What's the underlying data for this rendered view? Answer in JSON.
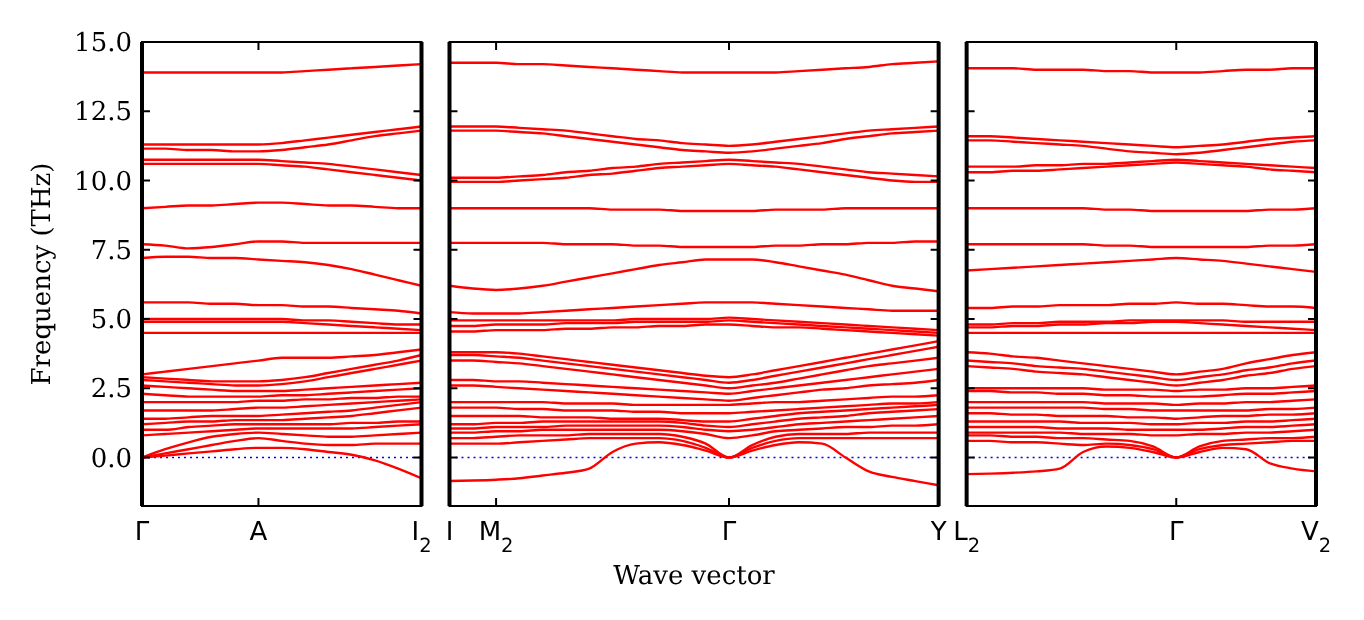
{
  "chart_data": [
    {
      "type": "line",
      "ylabel": "Frequency (THz)",
      "ylim": [
        -1.75,
        15
      ],
      "yticks": [
        {
          "value": 0,
          "label": "0.0"
        },
        {
          "value": 2.5,
          "label": "2.5"
        },
        {
          "value": 5,
          "label": "5.0"
        },
        {
          "value": 7.5,
          "label": "7.5"
        },
        {
          "value": 10,
          "label": "10.0"
        },
        {
          "value": 12.5,
          "label": "12.5"
        },
        {
          "value": 15,
          "label": "15.0"
        }
      ],
      "grid": false,
      "marker": "none",
      "line_style": "solid",
      "ref_lines": [
        {
          "axis": "y",
          "value": 0,
          "color": "#0000ff",
          "line_style": "dotted"
        }
      ],
      "categories": [
        "Γ",
        null,
        null,
        null,
        null,
        "A",
        null,
        null,
        null,
        null,
        null,
        null,
        "I$_{2}$"
      ],
      "series": [
        {
          "color": "#ff0000",
          "values": [
            0,
            0.07,
            0.15,
            0.22,
            0.3,
            0.35,
            0.35,
            0.3,
            0.2,
            0.1,
            -0.1,
            -0.4,
            -0.75
          ]
        },
        {
          "color": "#ff0000",
          "values": [
            0,
            0.15,
            0.3,
            0.45,
            0.6,
            0.7,
            0.6,
            0.5,
            0.45,
            0.45,
            0.5,
            0.5,
            0.5
          ]
        },
        {
          "color": "#ff0000",
          "values": [
            0,
            0.3,
            0.55,
            0.75,
            0.85,
            0.9,
            0.85,
            0.8,
            0.75,
            0.75,
            0.8,
            0.85,
            0.9
          ]
        },
        {
          "color": "#ff0000",
          "values": [
            0.8,
            0.85,
            0.9,
            0.95,
            1.0,
            1.05,
            1.05,
            1.05,
            1.05,
            1.05,
            1.1,
            1.15,
            1.2
          ]
        },
        {
          "color": "#ff0000",
          "values": [
            1.0,
            1.0,
            1.1,
            1.15,
            1.2,
            1.2,
            1.2,
            1.2,
            1.2,
            1.25,
            1.25,
            1.3,
            1.3
          ]
        },
        {
          "color": "#ff0000",
          "values": [
            1.2,
            1.25,
            1.3,
            1.3,
            1.35,
            1.35,
            1.35,
            1.4,
            1.45,
            1.5,
            1.6,
            1.7,
            1.8
          ]
        },
        {
          "color": "#ff0000",
          "values": [
            1.4,
            1.4,
            1.45,
            1.5,
            1.5,
            1.5,
            1.55,
            1.6,
            1.65,
            1.7,
            1.8,
            1.9,
            2.0
          ]
        },
        {
          "color": "#ff0000",
          "values": [
            1.7,
            1.7,
            1.7,
            1.7,
            1.75,
            1.8,
            1.8,
            1.85,
            1.9,
            1.95,
            2.0,
            2.05,
            2.1
          ]
        },
        {
          "color": "#ff0000",
          "values": [
            2.0,
            2.0,
            2.0,
            2.0,
            2.0,
            2.05,
            2.05,
            2.1,
            2.1,
            2.15,
            2.15,
            2.2,
            2.2
          ]
        },
        {
          "color": "#ff0000",
          "values": [
            2.3,
            2.25,
            2.2,
            2.2,
            2.2,
            2.2,
            2.25,
            2.25,
            2.3,
            2.35,
            2.4,
            2.45,
            2.5
          ]
        },
        {
          "color": "#ff0000",
          "values": [
            2.6,
            2.55,
            2.5,
            2.45,
            2.4,
            2.4,
            2.4,
            2.45,
            2.5,
            2.55,
            2.6,
            2.65,
            2.7
          ]
        },
        {
          "color": "#ff0000",
          "values": [
            2.8,
            2.75,
            2.7,
            2.65,
            2.6,
            2.6,
            2.65,
            2.75,
            2.9,
            3.05,
            3.2,
            3.35,
            3.5
          ]
        },
        {
          "color": "#ff0000",
          "values": [
            2.9,
            2.85,
            2.8,
            2.75,
            2.75,
            2.75,
            2.8,
            2.9,
            3.05,
            3.2,
            3.35,
            3.5,
            3.7
          ]
        },
        {
          "color": "#ff0000",
          "values": [
            3.0,
            3.1,
            3.2,
            3.3,
            3.4,
            3.5,
            3.6,
            3.6,
            3.6,
            3.65,
            3.7,
            3.8,
            3.9
          ]
        },
        {
          "color": "#ff0000",
          "values": [
            4.5,
            4.5,
            4.5,
            4.5,
            4.5,
            4.5,
            4.5,
            4.5,
            4.5,
            4.5,
            4.5,
            4.5,
            4.5
          ]
        },
        {
          "color": "#ff0000",
          "values": [
            4.9,
            4.9,
            4.9,
            4.9,
            4.9,
            4.9,
            4.9,
            4.85,
            4.8,
            4.75,
            4.7,
            4.65,
            4.6
          ]
        },
        {
          "color": "#ff0000",
          "values": [
            5.0,
            5.0,
            5.0,
            5.0,
            5.0,
            5.0,
            5.0,
            4.95,
            4.95,
            4.9,
            4.85,
            4.8,
            4.8
          ]
        },
        {
          "color": "#ff0000",
          "values": [
            5.6,
            5.6,
            5.6,
            5.55,
            5.55,
            5.5,
            5.5,
            5.45,
            5.45,
            5.4,
            5.35,
            5.3,
            5.2
          ]
        },
        {
          "color": "#ff0000",
          "values": [
            7.2,
            7.25,
            7.25,
            7.2,
            7.2,
            7.15,
            7.1,
            7.05,
            6.95,
            6.8,
            6.6,
            6.4,
            6.2
          ]
        },
        {
          "color": "#ff0000",
          "values": [
            7.7,
            7.65,
            7.55,
            7.6,
            7.7,
            7.8,
            7.8,
            7.75,
            7.75,
            7.75,
            7.75,
            7.75,
            7.75
          ]
        },
        {
          "color": "#ff0000",
          "values": [
            9.0,
            9.05,
            9.1,
            9.1,
            9.15,
            9.2,
            9.2,
            9.15,
            9.1,
            9.1,
            9.05,
            9.0,
            9.0
          ]
        },
        {
          "color": "#ff0000",
          "values": [
            10.6,
            10.6,
            10.6,
            10.6,
            10.6,
            10.6,
            10.55,
            10.5,
            10.4,
            10.3,
            10.2,
            10.1,
            10.0
          ]
        },
        {
          "color": "#ff0000",
          "values": [
            10.75,
            10.75,
            10.75,
            10.75,
            10.75,
            10.75,
            10.7,
            10.65,
            10.6,
            10.5,
            10.4,
            10.3,
            10.2
          ]
        },
        {
          "color": "#ff0000",
          "values": [
            11.15,
            11.15,
            11.1,
            11.1,
            11.05,
            11.05,
            11.1,
            11.2,
            11.3,
            11.45,
            11.6,
            11.7,
            11.8
          ]
        },
        {
          "color": "#ff0000",
          "values": [
            11.3,
            11.3,
            11.3,
            11.3,
            11.3,
            11.3,
            11.35,
            11.45,
            11.55,
            11.65,
            11.75,
            11.85,
            11.95
          ]
        },
        {
          "color": "#ff0000",
          "values": [
            13.9,
            13.9,
            13.9,
            13.9,
            13.9,
            13.9,
            13.9,
            13.95,
            14.0,
            14.05,
            14.1,
            14.15,
            14.2
          ]
        }
      ]
    },
    {
      "type": "line",
      "xlabel": "Wave vector",
      "ylim": [
        -1.75,
        15
      ],
      "yticks": [
        0,
        2.5,
        5,
        7.5,
        10,
        12.5,
        15
      ],
      "tick_labels": "x",
      "grid": false,
      "marker": "none",
      "line_style": "solid",
      "ref_lines": [
        {
          "axis": "y",
          "value": 0,
          "color": "#0000ff",
          "line_style": "dotted"
        }
      ],
      "categories": [
        "I",
        null,
        "M$_{2}$",
        null,
        null,
        null,
        null,
        null,
        null,
        null,
        null,
        null,
        "Γ",
        null,
        null,
        null,
        null,
        null,
        null,
        null,
        null,
        "Y"
      ],
      "series": [
        {
          "color": "#ff0000",
          "values": [
            -0.85,
            -0.83,
            -0.8,
            -0.75,
            -0.65,
            -0.55,
            -0.4,
            0.2,
            0.5,
            0.55,
            0.45,
            0.25,
            0,
            0.25,
            0.45,
            0.55,
            0.5,
            0.0,
            -0.5,
            -0.7,
            -0.85,
            -1.0
          ]
        },
        {
          "color": "#ff0000",
          "values": [
            0.5,
            0.5,
            0.5,
            0.55,
            0.6,
            0.65,
            0.7,
            0.7,
            0.7,
            0.7,
            0.6,
            0.35,
            0,
            0.35,
            0.6,
            0.7,
            0.7,
            0.7,
            0.7,
            0.7,
            0.7,
            0.7
          ]
        },
        {
          "color": "#ff0000",
          "values": [
            0.7,
            0.7,
            0.75,
            0.8,
            0.8,
            0.8,
            0.85,
            0.85,
            0.85,
            0.85,
            0.75,
            0.5,
            0,
            0.45,
            0.75,
            0.85,
            0.85,
            0.85,
            0.9,
            0.9,
            0.9,
            0.9
          ]
        },
        {
          "color": "#ff0000",
          "values": [
            0.9,
            0.9,
            0.95,
            0.95,
            1.0,
            1.0,
            1.0,
            1.0,
            1.0,
            1.0,
            0.95,
            0.85,
            0.7,
            0.8,
            0.95,
            1.0,
            1.05,
            1.1,
            1.1,
            1.15,
            1.15,
            1.2
          ]
        },
        {
          "color": "#ff0000",
          "values": [
            1.05,
            1.05,
            1.1,
            1.1,
            1.1,
            1.15,
            1.15,
            1.15,
            1.15,
            1.15,
            1.1,
            1.0,
            0.95,
            1.0,
            1.1,
            1.2,
            1.25,
            1.3,
            1.35,
            1.4,
            1.45,
            1.5
          ]
        },
        {
          "color": "#ff0000",
          "values": [
            1.2,
            1.2,
            1.25,
            1.25,
            1.3,
            1.3,
            1.3,
            1.3,
            1.3,
            1.3,
            1.25,
            1.15,
            1.1,
            1.2,
            1.3,
            1.4,
            1.45,
            1.5,
            1.6,
            1.65,
            1.7,
            1.75
          ]
        },
        {
          "color": "#ff0000",
          "values": [
            1.5,
            1.5,
            1.5,
            1.5,
            1.45,
            1.45,
            1.45,
            1.4,
            1.4,
            1.4,
            1.35,
            1.3,
            1.3,
            1.4,
            1.5,
            1.6,
            1.65,
            1.7,
            1.75,
            1.8,
            1.85,
            1.9
          ]
        },
        {
          "color": "#ff0000",
          "values": [
            1.8,
            1.8,
            1.8,
            1.75,
            1.75,
            1.7,
            1.7,
            1.7,
            1.65,
            1.65,
            1.6,
            1.6,
            1.6,
            1.65,
            1.7,
            1.75,
            1.8,
            1.85,
            1.9,
            1.95,
            1.95,
            2.0
          ]
        },
        {
          "color": "#ff0000",
          "values": [
            2.0,
            2.0,
            2.0,
            2.0,
            2.0,
            1.95,
            1.95,
            1.95,
            1.9,
            1.9,
            1.9,
            1.9,
            1.9,
            1.95,
            2.0,
            2.0,
            2.05,
            2.1,
            2.15,
            2.2,
            2.2,
            2.25
          ]
        },
        {
          "color": "#ff0000",
          "values": [
            2.6,
            2.6,
            2.55,
            2.5,
            2.45,
            2.4,
            2.35,
            2.3,
            2.25,
            2.2,
            2.15,
            2.1,
            2.05,
            2.15,
            2.25,
            2.35,
            2.45,
            2.5,
            2.6,
            2.65,
            2.7,
            2.8
          ]
        },
        {
          "color": "#ff0000",
          "values": [
            2.8,
            2.8,
            2.75,
            2.75,
            2.7,
            2.65,
            2.6,
            2.55,
            2.5,
            2.45,
            2.4,
            2.35,
            2.3,
            2.4,
            2.5,
            2.6,
            2.7,
            2.8,
            2.9,
            3.0,
            3.1,
            3.2
          ]
        },
        {
          "color": "#ff0000",
          "values": [
            3.5,
            3.5,
            3.45,
            3.4,
            3.3,
            3.2,
            3.1,
            3.0,
            2.9,
            2.8,
            2.7,
            2.6,
            2.5,
            2.6,
            2.7,
            2.85,
            3.0,
            3.15,
            3.3,
            3.4,
            3.5,
            3.6
          ]
        },
        {
          "color": "#ff0000",
          "values": [
            3.7,
            3.7,
            3.65,
            3.6,
            3.5,
            3.4,
            3.3,
            3.2,
            3.1,
            3.0,
            2.9,
            2.8,
            2.7,
            2.8,
            2.95,
            3.1,
            3.25,
            3.4,
            3.55,
            3.7,
            3.85,
            4.0
          ]
        },
        {
          "color": "#ff0000",
          "values": [
            3.8,
            3.8,
            3.8,
            3.75,
            3.65,
            3.55,
            3.45,
            3.35,
            3.25,
            3.15,
            3.05,
            2.95,
            2.9,
            3.0,
            3.15,
            3.3,
            3.45,
            3.6,
            3.75,
            3.9,
            4.05,
            4.2
          ]
        },
        {
          "color": "#ff0000",
          "values": [
            4.55,
            4.55,
            4.6,
            4.6,
            4.6,
            4.65,
            4.65,
            4.7,
            4.7,
            4.75,
            4.75,
            4.8,
            4.8,
            4.75,
            4.7,
            4.7,
            4.65,
            4.6,
            4.55,
            4.5,
            4.45,
            4.4
          ]
        },
        {
          "color": "#ff0000",
          "values": [
            4.75,
            4.75,
            4.8,
            4.8,
            4.8,
            4.85,
            4.85,
            4.85,
            4.9,
            4.9,
            4.9,
            4.9,
            4.95,
            4.9,
            4.85,
            4.8,
            4.75,
            4.7,
            4.65,
            4.6,
            4.55,
            4.5
          ]
        },
        {
          "color": "#ff0000",
          "values": [
            4.95,
            4.95,
            4.95,
            4.95,
            4.95,
            4.95,
            4.95,
            4.95,
            5.0,
            5.0,
            5.0,
            5.0,
            5.05,
            5.0,
            4.95,
            4.9,
            4.85,
            4.8,
            4.75,
            4.7,
            4.65,
            4.6
          ]
        },
        {
          "color": "#ff0000",
          "values": [
            5.25,
            5.2,
            5.2,
            5.2,
            5.25,
            5.3,
            5.35,
            5.4,
            5.45,
            5.5,
            5.55,
            5.6,
            5.6,
            5.6,
            5.55,
            5.5,
            5.45,
            5.4,
            5.35,
            5.3,
            5.3,
            5.3
          ]
        },
        {
          "color": "#ff0000",
          "values": [
            6.2,
            6.1,
            6.05,
            6.1,
            6.2,
            6.35,
            6.5,
            6.65,
            6.8,
            6.95,
            7.05,
            7.15,
            7.15,
            7.15,
            7.05,
            6.9,
            6.75,
            6.6,
            6.4,
            6.2,
            6.1,
            6.0
          ]
        },
        {
          "color": "#ff0000",
          "values": [
            7.75,
            7.75,
            7.75,
            7.75,
            7.75,
            7.7,
            7.7,
            7.7,
            7.65,
            7.65,
            7.6,
            7.6,
            7.6,
            7.6,
            7.65,
            7.65,
            7.7,
            7.7,
            7.75,
            7.75,
            7.8,
            7.8
          ]
        },
        {
          "color": "#ff0000",
          "values": [
            9.0,
            9.0,
            9.0,
            9.0,
            9.0,
            9.0,
            9.0,
            8.95,
            8.95,
            8.95,
            8.9,
            8.9,
            8.9,
            8.9,
            8.95,
            8.95,
            8.95,
            9.0,
            9.0,
            9.0,
            9.0,
            9.0
          ]
        },
        {
          "color": "#ff0000",
          "values": [
            9.95,
            9.95,
            9.95,
            10.0,
            10.05,
            10.1,
            10.2,
            10.25,
            10.35,
            10.45,
            10.5,
            10.55,
            10.6,
            10.55,
            10.5,
            10.4,
            10.3,
            10.2,
            10.1,
            10.0,
            9.95,
            9.95
          ]
        },
        {
          "color": "#ff0000",
          "values": [
            10.1,
            10.1,
            10.1,
            10.15,
            10.2,
            10.3,
            10.35,
            10.45,
            10.5,
            10.6,
            10.65,
            10.7,
            10.75,
            10.7,
            10.65,
            10.6,
            10.5,
            10.4,
            10.3,
            10.25,
            10.2,
            10.15
          ]
        },
        {
          "color": "#ff0000",
          "values": [
            11.8,
            11.8,
            11.8,
            11.75,
            11.7,
            11.6,
            11.5,
            11.4,
            11.3,
            11.2,
            11.1,
            11.05,
            11.0,
            11.05,
            11.15,
            11.25,
            11.35,
            11.5,
            11.6,
            11.7,
            11.75,
            11.8
          ]
        },
        {
          "color": "#ff0000",
          "values": [
            11.95,
            11.95,
            11.95,
            11.9,
            11.85,
            11.8,
            11.7,
            11.6,
            11.5,
            11.45,
            11.35,
            11.3,
            11.25,
            11.3,
            11.4,
            11.5,
            11.6,
            11.7,
            11.8,
            11.85,
            11.9,
            11.95
          ]
        },
        {
          "color": "#ff0000",
          "values": [
            14.25,
            14.25,
            14.25,
            14.2,
            14.2,
            14.15,
            14.1,
            14.05,
            14.0,
            13.95,
            13.9,
            13.9,
            13.9,
            13.9,
            13.9,
            13.95,
            14.0,
            14.05,
            14.1,
            14.2,
            14.25,
            14.3
          ]
        }
      ]
    },
    {
      "type": "line",
      "ylim": [
        -1.75,
        15
      ],
      "yticks": [
        0,
        2.5,
        5,
        7.5,
        10,
        12.5,
        15
      ],
      "tick_labels": "x",
      "grid": false,
      "marker": "none",
      "line_style": "solid",
      "ref_lines": [
        {
          "axis": "y",
          "value": 0,
          "color": "#0000ff",
          "line_style": "dotted"
        }
      ],
      "categories": [
        "L$_{2}$",
        null,
        null,
        null,
        null,
        null,
        null,
        null,
        null,
        "Γ",
        null,
        null,
        null,
        null,
        null,
        "V$_{2}$"
      ],
      "series": [
        {
          "color": "#ff0000",
          "values": [
            -0.6,
            -0.58,
            -0.55,
            -0.5,
            -0.4,
            0.2,
            0.4,
            0.35,
            0.2,
            0,
            0.2,
            0.35,
            0.3,
            -0.2,
            -0.4,
            -0.5
          ]
        },
        {
          "color": "#ff0000",
          "values": [
            0.6,
            0.6,
            0.55,
            0.55,
            0.5,
            0.45,
            0.5,
            0.45,
            0.3,
            0,
            0.3,
            0.45,
            0.5,
            0.55,
            0.6,
            0.6
          ]
        },
        {
          "color": "#ff0000",
          "values": [
            0.8,
            0.8,
            0.75,
            0.75,
            0.7,
            0.7,
            0.65,
            0.6,
            0.4,
            0,
            0.4,
            0.6,
            0.65,
            0.7,
            0.7,
            0.75
          ]
        },
        {
          "color": "#ff0000",
          "values": [
            0.9,
            0.9,
            0.9,
            0.9,
            0.9,
            0.85,
            0.85,
            0.85,
            0.8,
            0.8,
            0.85,
            0.85,
            0.9,
            0.9,
            0.95,
            1.0
          ]
        },
        {
          "color": "#ff0000",
          "values": [
            1.1,
            1.1,
            1.1,
            1.1,
            1.05,
            1.05,
            1.05,
            1.0,
            1.0,
            1.0,
            1.0,
            1.05,
            1.1,
            1.1,
            1.15,
            1.2
          ]
        },
        {
          "color": "#ff0000",
          "values": [
            1.3,
            1.3,
            1.3,
            1.3,
            1.3,
            1.25,
            1.25,
            1.25,
            1.2,
            1.2,
            1.25,
            1.25,
            1.3,
            1.3,
            1.35,
            1.4
          ]
        },
        {
          "color": "#ff0000",
          "values": [
            1.6,
            1.6,
            1.55,
            1.55,
            1.5,
            1.5,
            1.5,
            1.45,
            1.45,
            1.4,
            1.45,
            1.5,
            1.5,
            1.55,
            1.55,
            1.6
          ]
        },
        {
          "color": "#ff0000",
          "values": [
            1.8,
            1.8,
            1.8,
            1.8,
            1.8,
            1.8,
            1.75,
            1.75,
            1.7,
            1.7,
            1.7,
            1.7,
            1.7,
            1.75,
            1.75,
            1.8
          ]
        },
        {
          "color": "#ff0000",
          "values": [
            2.0,
            2.0,
            2.0,
            2.0,
            2.0,
            2.0,
            1.95,
            1.95,
            1.95,
            1.9,
            1.95,
            1.95,
            2.0,
            2.0,
            2.05,
            2.1
          ]
        },
        {
          "color": "#ff0000",
          "values": [
            2.4,
            2.4,
            2.35,
            2.35,
            2.3,
            2.3,
            2.25,
            2.25,
            2.2,
            2.2,
            2.2,
            2.25,
            2.3,
            2.3,
            2.35,
            2.4
          ]
        },
        {
          "color": "#ff0000",
          "values": [
            2.5,
            2.5,
            2.5,
            2.5,
            2.5,
            2.5,
            2.45,
            2.45,
            2.45,
            2.4,
            2.45,
            2.45,
            2.5,
            2.5,
            2.55,
            2.6
          ]
        },
        {
          "color": "#ff0000",
          "values": [
            3.3,
            3.25,
            3.2,
            3.1,
            3.05,
            3.0,
            2.9,
            2.8,
            2.7,
            2.6,
            2.7,
            2.8,
            2.95,
            3.05,
            3.2,
            3.3
          ]
        },
        {
          "color": "#ff0000",
          "values": [
            3.5,
            3.45,
            3.4,
            3.3,
            3.25,
            3.2,
            3.1,
            3.0,
            2.9,
            2.8,
            2.9,
            3.0,
            3.15,
            3.25,
            3.4,
            3.5
          ]
        },
        {
          "color": "#ff0000",
          "values": [
            3.8,
            3.75,
            3.65,
            3.6,
            3.5,
            3.4,
            3.3,
            3.2,
            3.1,
            3.0,
            3.1,
            3.2,
            3.4,
            3.55,
            3.7,
            3.8
          ]
        },
        {
          "color": "#ff0000",
          "values": [
            4.5,
            4.5,
            4.5,
            4.5,
            4.5,
            4.5,
            4.5,
            4.5,
            4.5,
            4.5,
            4.5,
            4.5,
            4.5,
            4.5,
            4.5,
            4.5
          ]
        },
        {
          "color": "#ff0000",
          "values": [
            4.7,
            4.7,
            4.75,
            4.75,
            4.8,
            4.8,
            4.85,
            4.85,
            4.9,
            4.9,
            4.85,
            4.8,
            4.75,
            4.7,
            4.65,
            4.6
          ]
        },
        {
          "color": "#ff0000",
          "values": [
            4.8,
            4.8,
            4.85,
            4.85,
            4.9,
            4.9,
            4.9,
            4.95,
            4.95,
            4.95,
            4.95,
            4.95,
            4.9,
            4.9,
            4.9,
            4.9
          ]
        },
        {
          "color": "#ff0000",
          "values": [
            5.4,
            5.4,
            5.45,
            5.45,
            5.5,
            5.5,
            5.5,
            5.55,
            5.55,
            5.6,
            5.55,
            5.55,
            5.5,
            5.45,
            5.45,
            5.4
          ]
        },
        {
          "color": "#ff0000",
          "values": [
            6.75,
            6.8,
            6.85,
            6.9,
            6.95,
            7.0,
            7.05,
            7.1,
            7.15,
            7.2,
            7.15,
            7.1,
            7.0,
            6.9,
            6.8,
            6.7
          ]
        },
        {
          "color": "#ff0000",
          "values": [
            7.7,
            7.7,
            7.7,
            7.7,
            7.7,
            7.7,
            7.65,
            7.65,
            7.6,
            7.6,
            7.6,
            7.6,
            7.6,
            7.65,
            7.65,
            7.7
          ]
        },
        {
          "color": "#ff0000",
          "values": [
            9.0,
            9.0,
            9.0,
            9.0,
            9.0,
            9.0,
            8.95,
            8.95,
            8.9,
            8.9,
            8.9,
            8.9,
            8.9,
            8.95,
            8.95,
            9.0
          ]
        },
        {
          "color": "#ff0000",
          "values": [
            10.3,
            10.3,
            10.35,
            10.35,
            10.4,
            10.45,
            10.5,
            10.55,
            10.6,
            10.65,
            10.6,
            10.55,
            10.5,
            10.4,
            10.35,
            10.3
          ]
        },
        {
          "color": "#ff0000",
          "values": [
            10.5,
            10.5,
            10.5,
            10.55,
            10.55,
            10.6,
            10.6,
            10.65,
            10.7,
            10.75,
            10.7,
            10.65,
            10.6,
            10.55,
            10.5,
            10.45
          ]
        },
        {
          "color": "#ff0000",
          "values": [
            11.45,
            11.45,
            11.4,
            11.35,
            11.3,
            11.25,
            11.15,
            11.05,
            11.0,
            10.95,
            11.0,
            11.1,
            11.2,
            11.3,
            11.4,
            11.45
          ]
        },
        {
          "color": "#ff0000",
          "values": [
            11.6,
            11.6,
            11.55,
            11.5,
            11.45,
            11.4,
            11.35,
            11.3,
            11.25,
            11.2,
            11.25,
            11.3,
            11.4,
            11.5,
            11.55,
            11.6
          ]
        },
        {
          "color": "#ff0000",
          "values": [
            14.05,
            14.05,
            14.05,
            14.0,
            14.0,
            14.0,
            13.95,
            13.95,
            13.9,
            13.9,
            13.9,
            13.95,
            14.0,
            14.0,
            14.05,
            14.05
          ]
        }
      ]
    }
  ]
}
